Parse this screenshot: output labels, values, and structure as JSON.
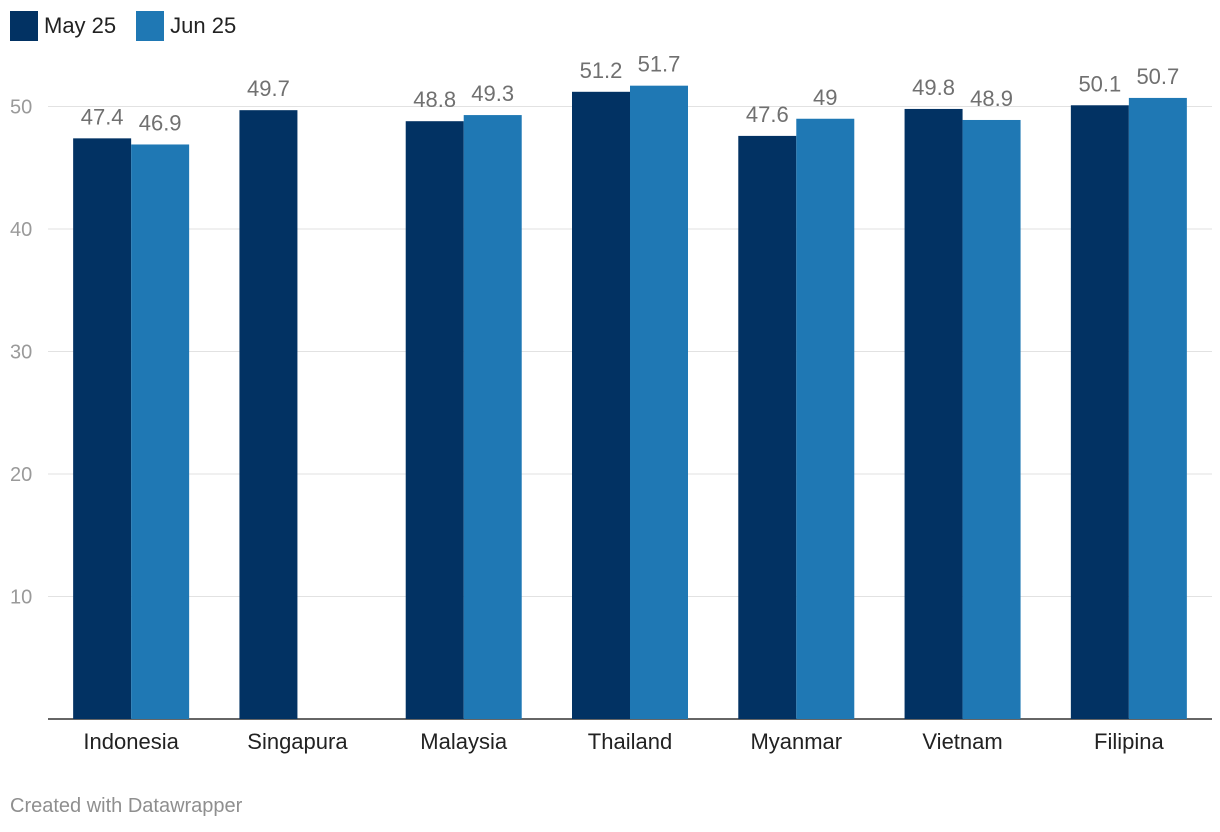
{
  "legend": [
    {
      "name": "May 25",
      "color": "#023263"
    },
    {
      "name": "Jun 25",
      "color": "#1f78b4"
    }
  ],
  "footer": "Created with Datawrapper",
  "chart_data": {
    "type": "bar",
    "title": "",
    "xlabel": "",
    "ylabel": "",
    "ylim": [
      0,
      52
    ],
    "yticks": [
      10,
      20,
      30,
      40,
      50
    ],
    "grid": true,
    "legend_position": "top-left",
    "categories": [
      "Indonesia",
      "Singapura",
      "Malaysia",
      "Thailand",
      "Myanmar",
      "Vietnam",
      "Filipina"
    ],
    "series": [
      {
        "name": "May 25",
        "color": "#023263",
        "values": [
          47.4,
          49.7,
          48.8,
          51.2,
          47.6,
          49.8,
          50.1
        ]
      },
      {
        "name": "Jun 25",
        "color": "#1f78b4",
        "values": [
          46.9,
          null,
          49.3,
          51.7,
          49,
          48.9,
          50.7
        ]
      }
    ]
  }
}
